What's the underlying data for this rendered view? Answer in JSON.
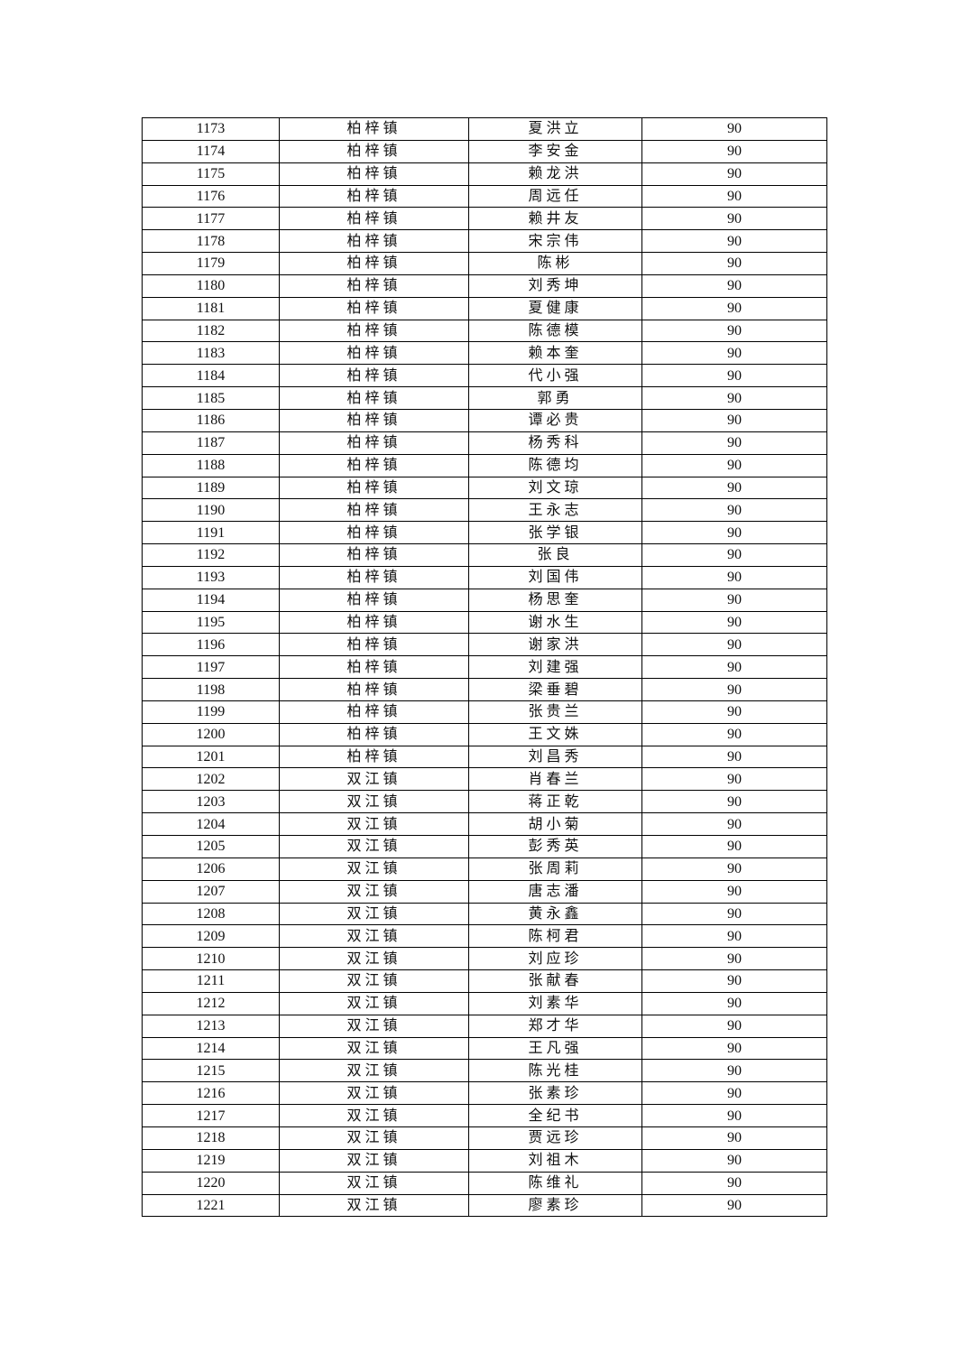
{
  "table": {
    "rows": [
      [
        "1173",
        "柏梓镇",
        "夏洪立",
        "90"
      ],
      [
        "1174",
        "柏梓镇",
        "李安金",
        "90"
      ],
      [
        "1175",
        "柏梓镇",
        "赖龙洪",
        "90"
      ],
      [
        "1176",
        "柏梓镇",
        "周远任",
        "90"
      ],
      [
        "1177",
        "柏梓镇",
        "赖井友",
        "90"
      ],
      [
        "1178",
        "柏梓镇",
        "宋宗伟",
        "90"
      ],
      [
        "1179",
        "柏梓镇",
        "陈彬",
        "90"
      ],
      [
        "1180",
        "柏梓镇",
        "刘秀坤",
        "90"
      ],
      [
        "1181",
        "柏梓镇",
        "夏健康",
        "90"
      ],
      [
        "1182",
        "柏梓镇",
        "陈德模",
        "90"
      ],
      [
        "1183",
        "柏梓镇",
        "赖本奎",
        "90"
      ],
      [
        "1184",
        "柏梓镇",
        "代小强",
        "90"
      ],
      [
        "1185",
        "柏梓镇",
        "郭勇",
        "90"
      ],
      [
        "1186",
        "柏梓镇",
        "谭必贵",
        "90"
      ],
      [
        "1187",
        "柏梓镇",
        "杨秀科",
        "90"
      ],
      [
        "1188",
        "柏梓镇",
        "陈德均",
        "90"
      ],
      [
        "1189",
        "柏梓镇",
        "刘文琼",
        "90"
      ],
      [
        "1190",
        "柏梓镇",
        "王永志",
        "90"
      ],
      [
        "1191",
        "柏梓镇",
        "张学银",
        "90"
      ],
      [
        "1192",
        "柏梓镇",
        "张良",
        "90"
      ],
      [
        "1193",
        "柏梓镇",
        "刘国伟",
        "90"
      ],
      [
        "1194",
        "柏梓镇",
        "杨思奎",
        "90"
      ],
      [
        "1195",
        "柏梓镇",
        "谢水生",
        "90"
      ],
      [
        "1196",
        "柏梓镇",
        "谢家洪",
        "90"
      ],
      [
        "1197",
        "柏梓镇",
        "刘建强",
        "90"
      ],
      [
        "1198",
        "柏梓镇",
        "梁垂碧",
        "90"
      ],
      [
        "1199",
        "柏梓镇",
        "张贵兰",
        "90"
      ],
      [
        "1200",
        "柏梓镇",
        "王文姝",
        "90"
      ],
      [
        "1201",
        "柏梓镇",
        "刘昌秀",
        "90"
      ],
      [
        "1202",
        "双江镇",
        "肖春兰",
        "90"
      ],
      [
        "1203",
        "双江镇",
        "蒋正乾",
        "90"
      ],
      [
        "1204",
        "双江镇",
        "胡小菊",
        "90"
      ],
      [
        "1205",
        "双江镇",
        "彭秀英",
        "90"
      ],
      [
        "1206",
        "双江镇",
        "张周莉",
        "90"
      ],
      [
        "1207",
        "双江镇",
        "唐志潘",
        "90"
      ],
      [
        "1208",
        "双江镇",
        "黄永鑫",
        "90"
      ],
      [
        "1209",
        "双江镇",
        "陈柯君",
        "90"
      ],
      [
        "1210",
        "双江镇",
        "刘应珍",
        "90"
      ],
      [
        "1211",
        "双江镇",
        "张献春",
        "90"
      ],
      [
        "1212",
        "双江镇",
        "刘素华",
        "90"
      ],
      [
        "1213",
        "双江镇",
        "郑才华",
        "90"
      ],
      [
        "1214",
        "双江镇",
        "王凡强",
        "90"
      ],
      [
        "1215",
        "双江镇",
        "陈光桂",
        "90"
      ],
      [
        "1216",
        "双江镇",
        "张素珍",
        "90"
      ],
      [
        "1217",
        "双江镇",
        "全纪书",
        "90"
      ],
      [
        "1218",
        "双江镇",
        "贾远珍",
        "90"
      ],
      [
        "1219",
        "双江镇",
        "刘祖木",
        "90"
      ],
      [
        "1220",
        "双江镇",
        "陈维礼",
        "90"
      ],
      [
        "1221",
        "双江镇",
        "廖素珍",
        "90"
      ]
    ]
  }
}
